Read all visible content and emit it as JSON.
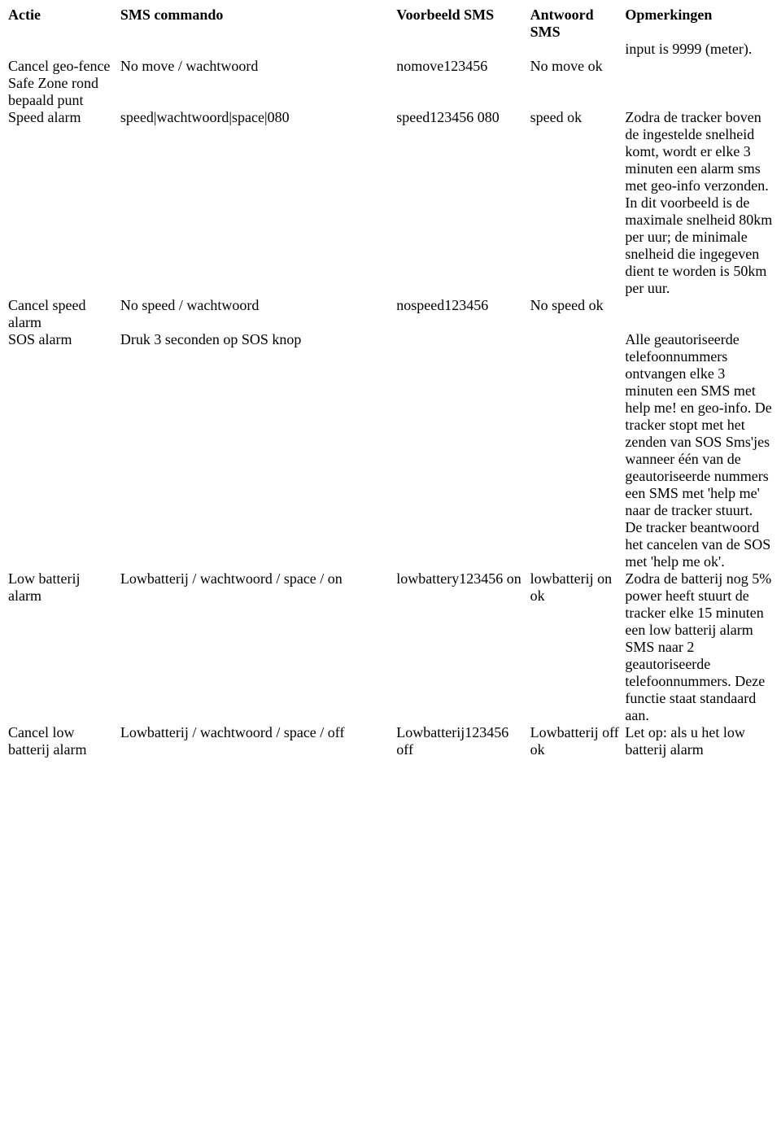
{
  "table": {
    "headers": {
      "actie": "Actie",
      "sms_commando": "SMS commando",
      "voorbeeld_sms": "Voorbeeld SMS",
      "antwoord_sms": "Antwoord SMS",
      "opmerkingen": "Opmerkingen"
    },
    "rows": [
      {
        "actie": "",
        "sms_commando": "",
        "voorbeeld_sms": "",
        "antwoord_sms": "",
        "opmerkingen": "input is 9999 (meter)."
      },
      {
        "actie": "Cancel geo-fence Safe Zone rond bepaald punt",
        "sms_commando": "No move / wachtwoord",
        "voorbeeld_sms": "nomove123456",
        "antwoord_sms": "No move ok",
        "opmerkingen": ""
      },
      {
        "actie": "Speed alarm",
        "sms_commando": "speed|wachtwoord|space|080",
        "voorbeeld_sms": "speed123456 080",
        "antwoord_sms": "speed ok",
        "opmerkingen": "Zodra de tracker boven de ingestelde snelheid komt, wordt er elke 3 minuten een alarm sms met geo-info verzonden. In dit voorbeeld is de maximale snelheid 80km per uur; de minimale snelheid die ingegeven dient te worden is 50km per uur."
      },
      {
        "actie": "Cancel speed alarm",
        "sms_commando": "No speed / wachtwoord",
        "voorbeeld_sms": "nospeed123456",
        "antwoord_sms": "No speed ok",
        "opmerkingen": ""
      },
      {
        "actie": "SOS alarm",
        "sms_commando": "Druk 3 seconden op SOS knop",
        "voorbeeld_sms": "",
        "antwoord_sms": "",
        "opmerkingen": "Alle geautoriseerde telefoonnummers ontvangen elke 3 minuten een SMS met help me! en geo-info. De tracker stopt met het zenden van SOS Sms'jes wanneer één van de geautoriseerde nummers een SMS met 'help me' naar de tracker stuurt. De tracker beantwoord het cancelen van de SOS met 'help me ok'."
      },
      {
        "actie": "Low batterij alarm",
        "sms_commando": "Lowbatterij / wachtwoord / space / on",
        "voorbeeld_sms": "lowbattery123456 on",
        "antwoord_sms": "lowbatterij on ok",
        "opmerkingen": "Zodra de batterij nog 5% power heeft stuurt de tracker elke 15 minuten een low batterij alarm SMS naar 2 geautoriseerde telefoonnummers. Deze functie staat standaard aan."
      },
      {
        "actie": "Cancel low batterij alarm",
        "sms_commando": "Lowbatterij / wachtwoord / space / off",
        "voorbeeld_sms": "Lowbatterij123456 off",
        "antwoord_sms": "Lowbatterij off ok",
        "opmerkingen": "Let op: als u het low batterij alarm"
      }
    ]
  }
}
